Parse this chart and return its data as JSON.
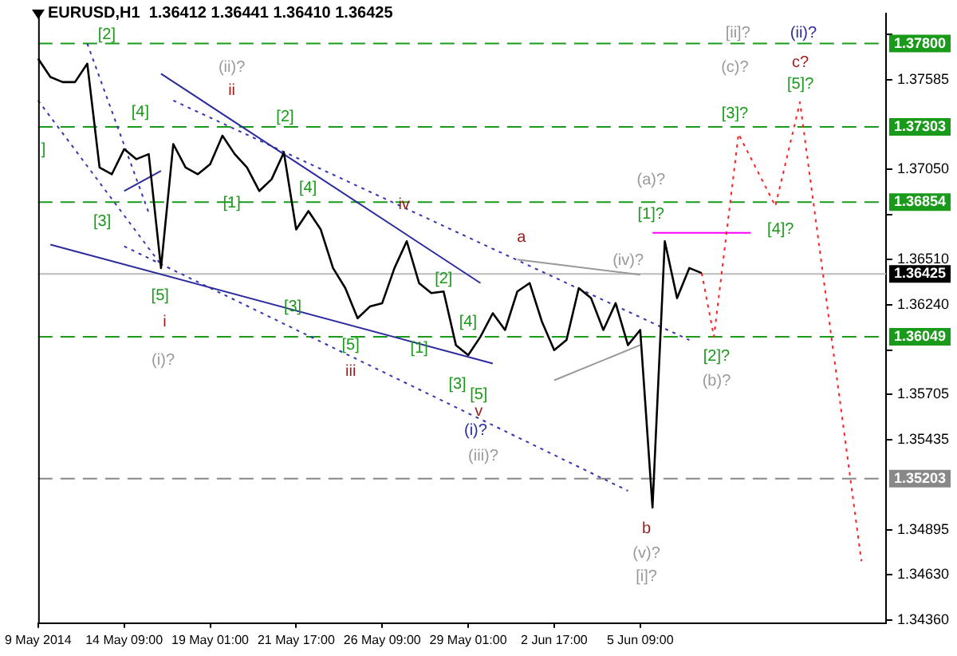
{
  "chart_data": {
    "type": "line",
    "title": "EURUSD,H1  1.36412 1.36441 1.36410 1.36425",
    "categories": [
      "9 May 2014",
      null,
      null,
      null,
      null,
      null,
      null,
      "14 May 09:00",
      null,
      null,
      null,
      null,
      null,
      null,
      "19 May 01:00",
      null,
      null,
      null,
      null,
      null,
      null,
      "21 May 17:00",
      null,
      null,
      null,
      null,
      null,
      null,
      "26 May 09:00",
      null,
      null,
      null,
      null,
      null,
      null,
      "29 May 01:00",
      null,
      null,
      null,
      null,
      null,
      null,
      "2 Jun 17:00",
      null,
      null,
      null,
      null,
      null,
      null,
      "5 Jun 09:00",
      null,
      null,
      null,
      null,
      null,
      null,
      null,
      null,
      null,
      null,
      null,
      null,
      null,
      null,
      null,
      null,
      null,
      null,
      null,
      null
    ],
    "ylim": [
      1.3434,
      1.3798
    ],
    "yticks": [
      {
        "value": 1.37855,
        "label": null
      },
      1.37585,
      {
        "value": 1.3705,
        "label": "1.37050"
      },
      {
        "value": 1.3678,
        "label": null
      },
      {
        "value": 1.3651,
        "label": "1.36510"
      },
      {
        "value": 1.3624,
        "label": "1.36240"
      },
      {
        "value": 1.3597,
        "label": null
      },
      1.35705,
      1.35435,
      1.34895,
      {
        "value": 1.3463,
        "label": "1.34630"
      },
      {
        "value": 1.3436,
        "label": "1.34360"
      }
    ],
    "grid": false,
    "legend": false,
    "marker": "none",
    "series": [
      {
        "color": "#000000",
        "line_style": "solid",
        "values": [
          1.3771,
          1.376,
          1.3757,
          1.3757,
          1.3768,
          1.3706,
          1.3702,
          1.3717,
          1.3711,
          1.3714,
          1.3646,
          1.372,
          1.3706,
          1.3702,
          1.3708,
          1.3725,
          1.3714,
          1.3706,
          1.3692,
          1.3699,
          1.3715,
          1.3669,
          1.368,
          1.3669,
          1.3646,
          1.3634,
          1.3616,
          1.3623,
          1.3625,
          1.3646,
          1.3662,
          1.3637,
          1.3631,
          1.3632,
          1.36,
          1.3594,
          1.3605,
          1.3619,
          1.3609,
          1.3632,
          1.3637,
          1.3614,
          1.3597,
          1.3603,
          1.3634,
          1.3628,
          1.3609,
          1.3625,
          1.36,
          1.3609,
          1.3503,
          1.3662,
          1.3628,
          1.3646,
          1.3643,
          null,
          null,
          null,
          null,
          null,
          null,
          null,
          null,
          null,
          null,
          null,
          null,
          null,
          null,
          null
        ]
      },
      {
        "color": "#ff2020",
        "line_style": "dotted",
        "values": [
          null,
          null,
          null,
          null,
          null,
          null,
          null,
          null,
          null,
          null,
          null,
          null,
          null,
          null,
          null,
          null,
          null,
          null,
          null,
          null,
          null,
          null,
          null,
          null,
          null,
          null,
          null,
          null,
          null,
          null,
          null,
          null,
          null,
          null,
          null,
          null,
          null,
          null,
          null,
          null,
          null,
          null,
          null,
          null,
          null,
          null,
          null,
          null,
          null,
          null,
          null,
          null,
          null,
          null,
          1.3643,
          1.3605,
          null,
          1.3726,
          null,
          null,
          1.3683,
          null,
          1.3745,
          null,
          null,
          null,
          null,
          1.3471,
          null,
          null
        ]
      },
      {
        "color": "#2b2b9e",
        "line_style": "solid",
        "values": [
          null,
          null,
          null,
          null,
          null,
          null,
          null,
          null,
          null,
          null,
          1.3762,
          null,
          null,
          null,
          null,
          null,
          null,
          null,
          null,
          null,
          null,
          null,
          null,
          null,
          null,
          null,
          null,
          null,
          null,
          null,
          null,
          null,
          null,
          null,
          null,
          null,
          1.3637,
          null,
          null,
          null,
          null,
          null,
          null,
          null,
          null,
          null,
          null,
          null,
          null,
          null,
          null,
          null,
          null,
          null,
          null,
          null,
          null,
          null,
          null,
          null,
          null,
          null,
          null,
          null,
          null,
          null,
          null,
          null,
          null,
          null
        ]
      },
      {
        "color": "#3535b0",
        "line_style": "dotted",
        "values": [
          null,
          null,
          null,
          null,
          null,
          null,
          null,
          null,
          null,
          null,
          null,
          1.3746,
          null,
          null,
          null,
          null,
          null,
          null,
          null,
          null,
          null,
          null,
          null,
          null,
          null,
          null,
          null,
          null,
          null,
          null,
          null,
          null,
          null,
          null,
          null,
          null,
          null,
          null,
          null,
          null,
          null,
          null,
          null,
          null,
          null,
          null,
          null,
          null,
          null,
          null,
          null,
          null,
          null,
          1.3603,
          null,
          null,
          null,
          null,
          null,
          null,
          null,
          null,
          null,
          null,
          null,
          null,
          null,
          null,
          null,
          null
        ]
      },
      {
        "color": "#2b2b9e",
        "line_style": "solid",
        "values": [
          null,
          1.366,
          null,
          null,
          null,
          null,
          null,
          null,
          null,
          null,
          null,
          null,
          null,
          null,
          null,
          null,
          null,
          null,
          null,
          null,
          null,
          null,
          null,
          null,
          null,
          null,
          null,
          null,
          null,
          null,
          null,
          null,
          null,
          null,
          null,
          null,
          null,
          1.3589,
          null,
          null,
          null,
          null,
          null,
          null,
          null,
          null,
          null,
          null,
          null,
          null,
          null,
          null,
          null,
          null,
          null,
          null,
          null,
          null,
          null,
          null,
          null,
          null,
          null,
          null,
          null,
          null,
          null,
          null,
          null,
          null
        ]
      },
      {
        "color": "#3535b0",
        "line_style": "dotted",
        "values": [
          null,
          null,
          null,
          null,
          null,
          null,
          null,
          1.3659,
          null,
          null,
          null,
          null,
          null,
          null,
          null,
          null,
          null,
          null,
          null,
          null,
          null,
          null,
          null,
          null,
          null,
          null,
          null,
          null,
          null,
          null,
          null,
          null,
          null,
          null,
          null,
          null,
          null,
          null,
          null,
          null,
          null,
          null,
          null,
          null,
          null,
          null,
          null,
          null,
          1.3513,
          null,
          null,
          null,
          null,
          null,
          null,
          null,
          null,
          null,
          null,
          null,
          null,
          null,
          null,
          null,
          null,
          null,
          null,
          null,
          null,
          null
        ]
      },
      {
        "color": "#3535b0",
        "line_style": "dotted",
        "values": [
          1.3746,
          null,
          null,
          null,
          null,
          null,
          null,
          null,
          null,
          null,
          1.3648,
          null,
          null,
          null,
          null,
          null,
          null,
          null,
          null,
          null,
          null,
          null,
          null,
          null,
          null,
          null,
          null,
          null,
          null,
          null,
          null,
          null,
          null,
          null,
          null,
          null,
          null,
          null,
          null,
          null,
          null,
          null,
          null,
          null,
          null,
          null,
          null,
          null,
          null,
          null,
          null,
          null,
          null,
          null,
          null,
          null,
          null,
          null,
          null,
          null,
          null,
          null,
          null,
          null,
          null,
          null,
          null,
          null,
          null,
          null
        ]
      },
      {
        "color": "#3535b0",
        "line_style": "dotted",
        "values": [
          null,
          null,
          null,
          null,
          1.378,
          null,
          null,
          null,
          null,
          1.3679,
          null,
          null,
          null,
          null,
          null,
          null,
          null,
          null,
          null,
          null,
          null,
          null,
          null,
          null,
          null,
          null,
          null,
          null,
          null,
          null,
          null,
          null,
          null,
          null,
          null,
          null,
          null,
          null,
          null,
          null,
          null,
          null,
          null,
          null,
          null,
          null,
          null,
          null,
          null,
          null,
          null,
          null,
          null,
          null,
          null,
          null,
          null,
          null,
          null,
          null,
          null,
          null,
          null,
          null,
          null,
          null,
          null,
          null,
          null,
          null
        ]
      },
      {
        "color": "#2b2b9e",
        "line_style": "solid",
        "values": [
          null,
          null,
          null,
          null,
          null,
          null,
          null,
          1.3692,
          null,
          null,
          1.3704,
          null,
          null,
          null,
          null,
          null,
          null,
          null,
          null,
          null,
          null,
          null,
          null,
          null,
          null,
          null,
          null,
          null,
          null,
          null,
          null,
          null,
          null,
          null,
          null,
          null,
          null,
          null,
          null,
          null,
          null,
          null,
          null,
          null,
          null,
          null,
          null,
          null,
          null,
          null,
          null,
          null,
          null,
          null,
          null,
          null,
          null,
          null,
          null,
          null,
          null,
          null,
          null,
          null,
          null,
          null,
          null,
          null,
          null,
          null
        ]
      },
      {
        "color": "#999999",
        "line_style": "solid",
        "values": [
          null,
          null,
          null,
          null,
          null,
          null,
          null,
          null,
          null,
          null,
          null,
          null,
          null,
          null,
          null,
          null,
          null,
          null,
          null,
          null,
          null,
          null,
          null,
          null,
          null,
          null,
          null,
          null,
          null,
          null,
          null,
          null,
          null,
          null,
          null,
          null,
          null,
          null,
          null,
          1.3651,
          null,
          null,
          null,
          null,
          null,
          null,
          null,
          null,
          null,
          1.3642,
          null,
          null,
          null,
          null,
          null,
          null,
          null,
          null,
          null,
          null,
          null,
          null,
          null,
          null,
          null,
          null,
          null,
          null,
          null,
          null
        ]
      },
      {
        "color": "#999999",
        "line_style": "solid",
        "values": [
          null,
          null,
          null,
          null,
          null,
          null,
          null,
          null,
          null,
          null,
          null,
          null,
          null,
          null,
          null,
          null,
          null,
          null,
          null,
          null,
          null,
          null,
          null,
          null,
          null,
          null,
          null,
          null,
          null,
          null,
          null,
          null,
          null,
          null,
          null,
          null,
          null,
          null,
          null,
          null,
          null,
          null,
          1.3579,
          null,
          null,
          null,
          null,
          null,
          null,
          1.36,
          null,
          null,
          null,
          null,
          null,
          null,
          null,
          null,
          null,
          null,
          null,
          null,
          null,
          null,
          null,
          null,
          null,
          null,
          null,
          null
        ]
      },
      {
        "color": "#ff00ff",
        "line_style": "solid",
        "values": [
          null,
          null,
          null,
          null,
          null,
          null,
          null,
          null,
          null,
          null,
          null,
          null,
          null,
          null,
          null,
          null,
          null,
          null,
          null,
          null,
          null,
          null,
          null,
          null,
          null,
          null,
          null,
          null,
          null,
          null,
          null,
          null,
          null,
          null,
          null,
          null,
          null,
          null,
          null,
          null,
          null,
          null,
          null,
          null,
          null,
          null,
          null,
          null,
          null,
          null,
          1.3667,
          null,
          null,
          null,
          null,
          null,
          null,
          null,
          1.3667,
          null,
          null,
          null,
          null,
          null,
          null,
          null,
          null,
          null,
          null,
          null
        ]
      }
    ],
    "ref_lines": [
      {
        "axis": "y",
        "value": 1.378,
        "label": "1.37800",
        "color": "#1a9a1a",
        "line_style": "dashed"
      },
      {
        "axis": "y",
        "value": 1.37303,
        "label": "1.37303",
        "color": "#1a9a1a",
        "line_style": "dashed"
      },
      {
        "axis": "y",
        "value": 1.36854,
        "label": "1.36854",
        "color": "#1a9a1a",
        "line_style": "dashed"
      },
      {
        "axis": "y",
        "value": 1.36049,
        "label": "1.36049",
        "color": "#1a9a1a",
        "line_style": "dashed"
      },
      {
        "axis": "y",
        "value": 1.35203,
        "label": "1.35203",
        "color": "#888888",
        "line_style": "dashed"
      },
      {
        "axis": "y",
        "value": 1.36425,
        "label": "1.36425",
        "color": "#bbbbbb",
        "line_style": "solid"
      }
    ],
    "annotations": [
      "[2]",
      "]",
      "[4]",
      "[3]",
      "[5]",
      "i",
      "(i)?",
      "(ii)?",
      "ii",
      "[1]",
      "[2]",
      "[4]",
      "[3]",
      "iv",
      "[5]",
      "iii",
      "[1]",
      "[2]",
      "[4]",
      "[3]",
      "[5]",
      "v",
      "(i)?",
      "(iii)?",
      "a",
      "(iv)?",
      "(a)?",
      "[1]?",
      "b",
      "(v)?",
      "[i]?",
      "[2]?",
      "(b)?",
      "[ii]?",
      "(c)?",
      "[3]?",
      "(ii)?",
      "c?",
      "[5]?",
      "[4]?"
    ]
  }
}
